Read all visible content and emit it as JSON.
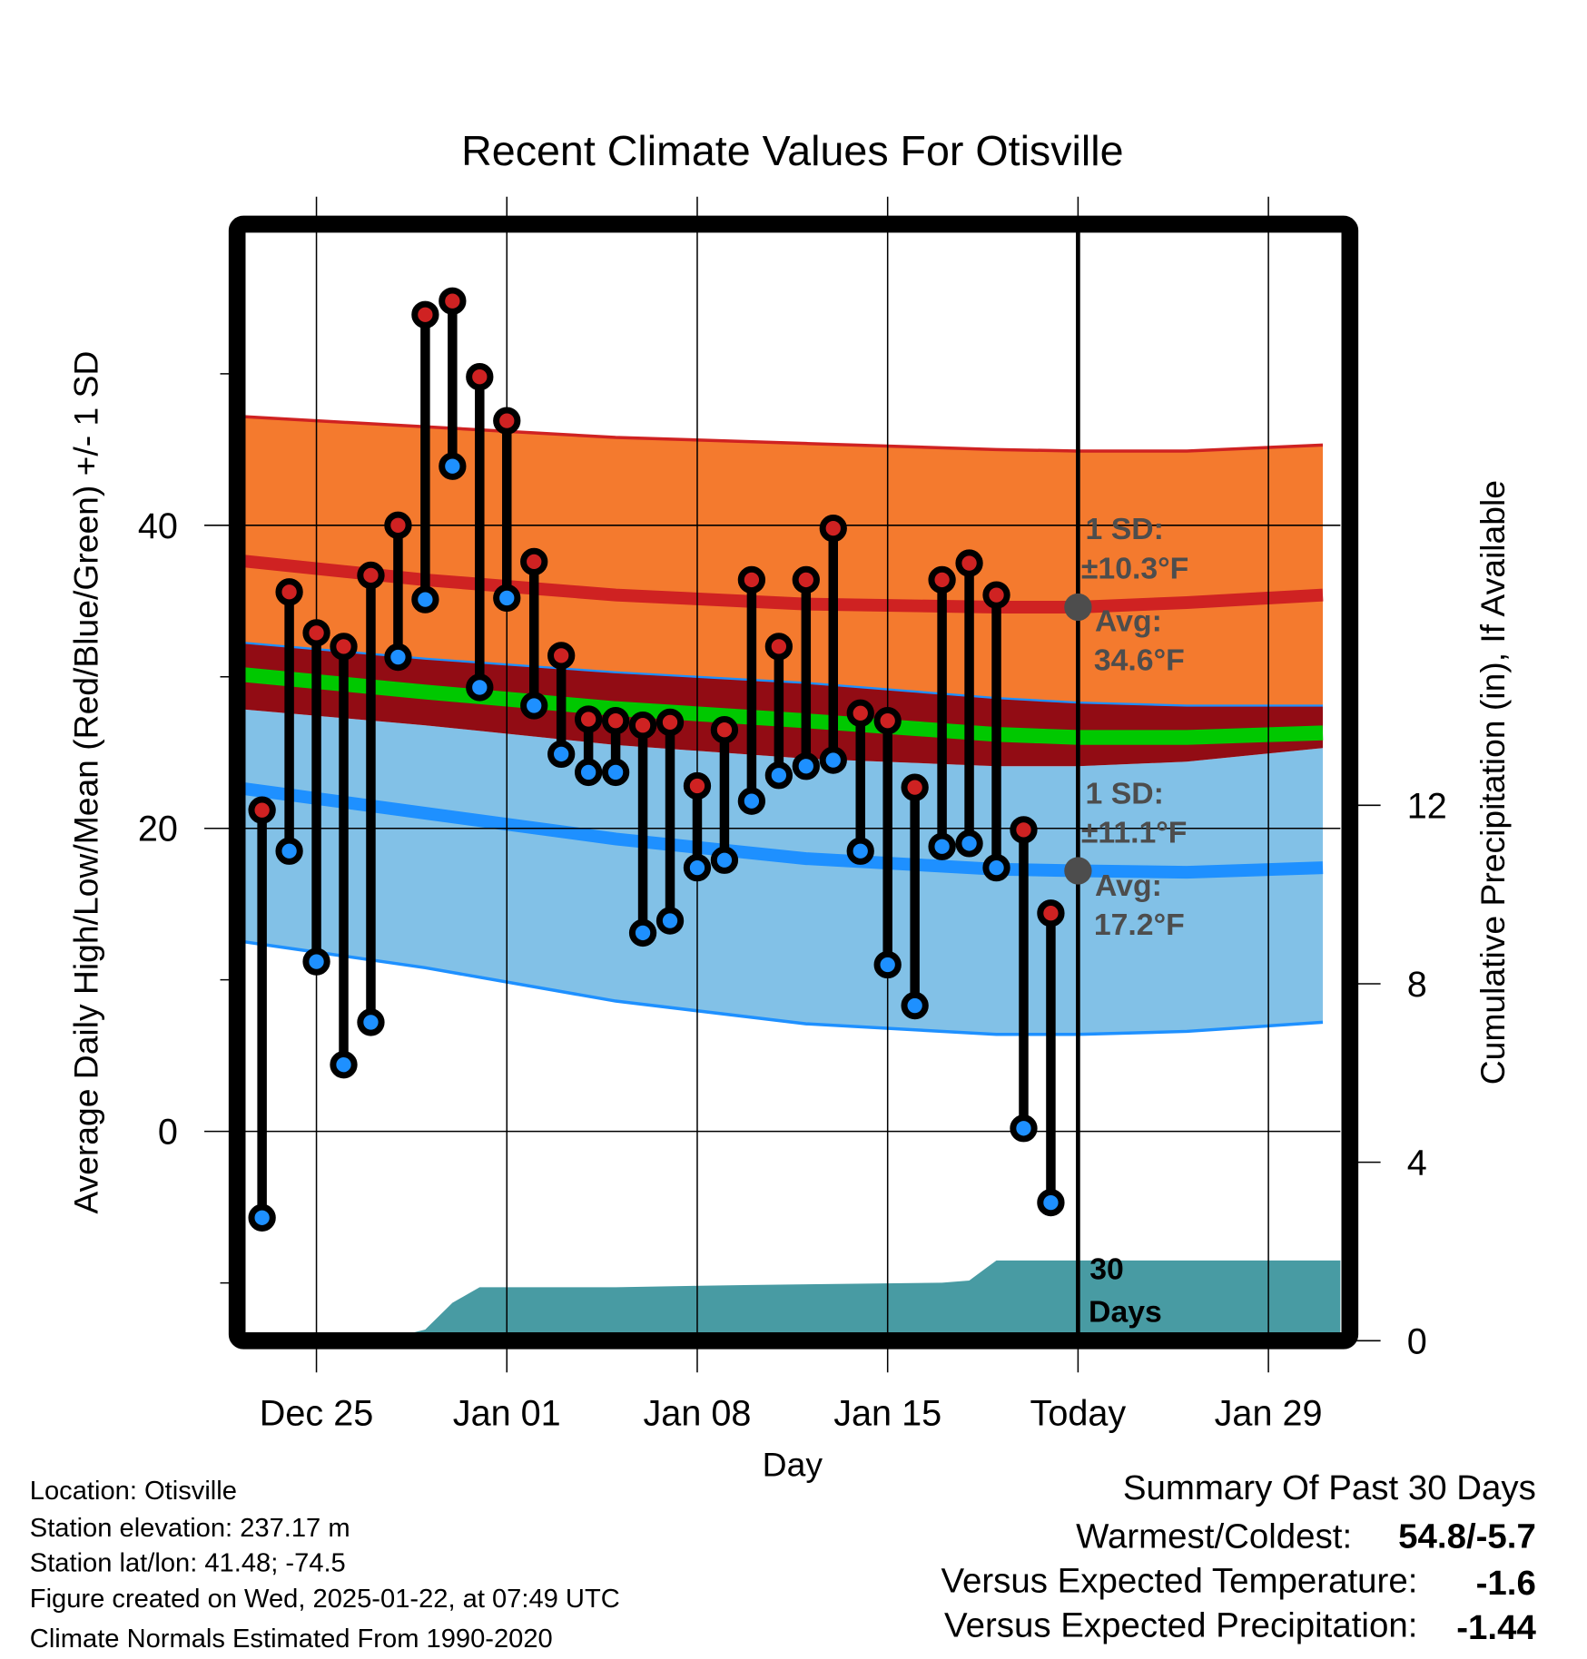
{
  "chart_data": {
    "type": "line",
    "title": "Recent Climate Values For Otisville",
    "xlabel": "Day",
    "ylabel": "Average Daily High/Low/Mean (Red/Blue/Green) +/- 1 SD",
    "y2label": "Cumulative Precipitation (in), If Available",
    "x_ticks": [
      "Dec 25",
      "Jan 01",
      "Jan 08",
      "Jan 15",
      "Today",
      "Jan 29"
    ],
    "x_tick_dates": [
      "Dec 25",
      "Jan 01",
      "Jan 08",
      "Jan 15",
      "Jan 22",
      "Jan 29"
    ],
    "y_ticks": [
      "0",
      "20",
      "40"
    ],
    "y_tick_values": [
      0,
      20,
      40
    ],
    "y_minor_ticks": [
      -10,
      10,
      30,
      50
    ],
    "y2_ticks": [
      "0",
      "4",
      "8",
      "12"
    ],
    "y2_tick_values": [
      0,
      4,
      8,
      12
    ],
    "ylim": [
      -13.3,
      59.2
    ],
    "y2lim": [
      0,
      24.8
    ],
    "grid": true,
    "observed": {
      "dates": [
        "Dec 23",
        "Dec 24",
        "Dec 25",
        "Dec 26",
        "Dec 27",
        "Dec 28",
        "Dec 29",
        "Dec 30",
        "Dec 31",
        "Jan 01",
        "Jan 02",
        "Jan 03",
        "Jan 04",
        "Jan 05",
        "Jan 06",
        "Jan 07",
        "Jan 08",
        "Jan 09",
        "Jan 10",
        "Jan 11",
        "Jan 12",
        "Jan 13",
        "Jan 14",
        "Jan 15",
        "Jan 16",
        "Jan 17",
        "Jan 18",
        "Jan 19",
        "Jan 20",
        "Jan 21"
      ],
      "highs": [
        21.2,
        35.6,
        32.9,
        32.0,
        36.7,
        40.0,
        53.9,
        54.8,
        49.8,
        46.9,
        37.6,
        31.4,
        27.2,
        27.1,
        26.8,
        27.0,
        22.8,
        26.5,
        36.4,
        32.0,
        36.4,
        39.8,
        27.6,
        27.1,
        22.7,
        36.4,
        37.5,
        35.4,
        19.9,
        14.4
      ],
      "lows": [
        -5.7,
        18.5,
        11.2,
        4.4,
        7.2,
        31.3,
        35.1,
        43.9,
        29.3,
        35.2,
        28.1,
        24.9,
        23.7,
        23.7,
        13.1,
        13.9,
        17.4,
        17.9,
        21.8,
        23.5,
        24.1,
        24.5,
        18.5,
        11.0,
        8.3,
        18.8,
        19.0,
        17.4,
        0.2,
        -4.7
      ]
    },
    "normals": {
      "dates": [
        "Dec 22",
        "Dec 29",
        "Jan 05",
        "Jan 12",
        "Jan 19",
        "Jan 22",
        "Jan 26",
        "Jan 31"
      ],
      "high_plus_sd": [
        47.2,
        46.5,
        45.8,
        45.4,
        45.0,
        44.9,
        44.9,
        45.3
      ],
      "high_mean": [
        37.7,
        36.4,
        35.4,
        34.8,
        34.6,
        34.6,
        34.9,
        35.4
      ],
      "high_minus_sd": [
        32.3,
        31.2,
        30.3,
        29.6,
        28.6,
        28.3,
        28.1,
        28.1
      ],
      "mean": [
        30.2,
        29.0,
        27.9,
        27.1,
        26.2,
        26.0,
        26.0,
        26.3
      ],
      "low_plus_sd": [
        27.9,
        26.8,
        25.5,
        24.6,
        24.1,
        24.1,
        24.4,
        25.3
      ],
      "low_mean": [
        22.7,
        21.0,
        19.3,
        18.0,
        17.3,
        17.2,
        17.1,
        17.4
      ],
      "low_minus_sd": [
        12.6,
        10.8,
        8.6,
        7.1,
        6.4,
        6.4,
        6.6,
        7.2
      ]
    },
    "precip": {
      "dates": [
        "Dec 22",
        "Dec 27",
        "Dec 28",
        "Dec 29",
        "Dec 30",
        "Dec 31",
        "Jan 05",
        "Jan 10",
        "Jan 17",
        "Jan 18",
        "Jan 19",
        "Jan 31"
      ],
      "cumulative_in": [
        0,
        0,
        0.1,
        0.25,
        0.85,
        1.2,
        1.2,
        1.25,
        1.3,
        1.35,
        1.8,
        1.8
      ]
    },
    "today_date": "Jan 22",
    "annotations": {
      "high_sd_label": "1 SD:",
      "high_sd_value": "±10.3°F",
      "high_avg_label": "Avg:",
      "high_avg_value": "34.6°F",
      "high_avg": 34.6,
      "low_sd_label": "1 SD:",
      "low_sd_value": "±11.1°F",
      "low_avg_label": "Avg:",
      "low_avg_value": "17.2°F",
      "low_avg": 17.2,
      "days_label_1": "30",
      "days_label_2": "Days"
    },
    "colors": {
      "orange": "#f47a2e",
      "high_line": "#cf2222",
      "dark_red": "#920c14",
      "green": "#00c800",
      "light_blue": "#82c1e7",
      "low_line": "#1e90ff",
      "precip": "#489ba3",
      "high_dot": "#cf2222",
      "low_dot": "#1e90ff",
      "annotation": "#4d4d4d"
    }
  },
  "footer": {
    "location": "Location: Otisville",
    "elevation": "Station elevation: 237.17 m",
    "latlon": "Station lat/lon: 41.48; -74.5",
    "created": "Figure created on Wed, 2025-01-22, at 07:49 UTC",
    "normals": "Climate Normals Estimated From 1990-2020"
  },
  "summary": {
    "title": "Summary Of Past 30 Days",
    "warm_cold_label": "Warmest/Coldest:",
    "warm_cold_value": "54.8/-5.7",
    "temp_label": "Versus Expected Temperature:",
    "temp_value": "-1.6",
    "temp_color": "#1e90ff",
    "precip_label": "Versus Expected Precipitation:",
    "precip_value": "-1.44",
    "precip_color": "#a0522d"
  }
}
